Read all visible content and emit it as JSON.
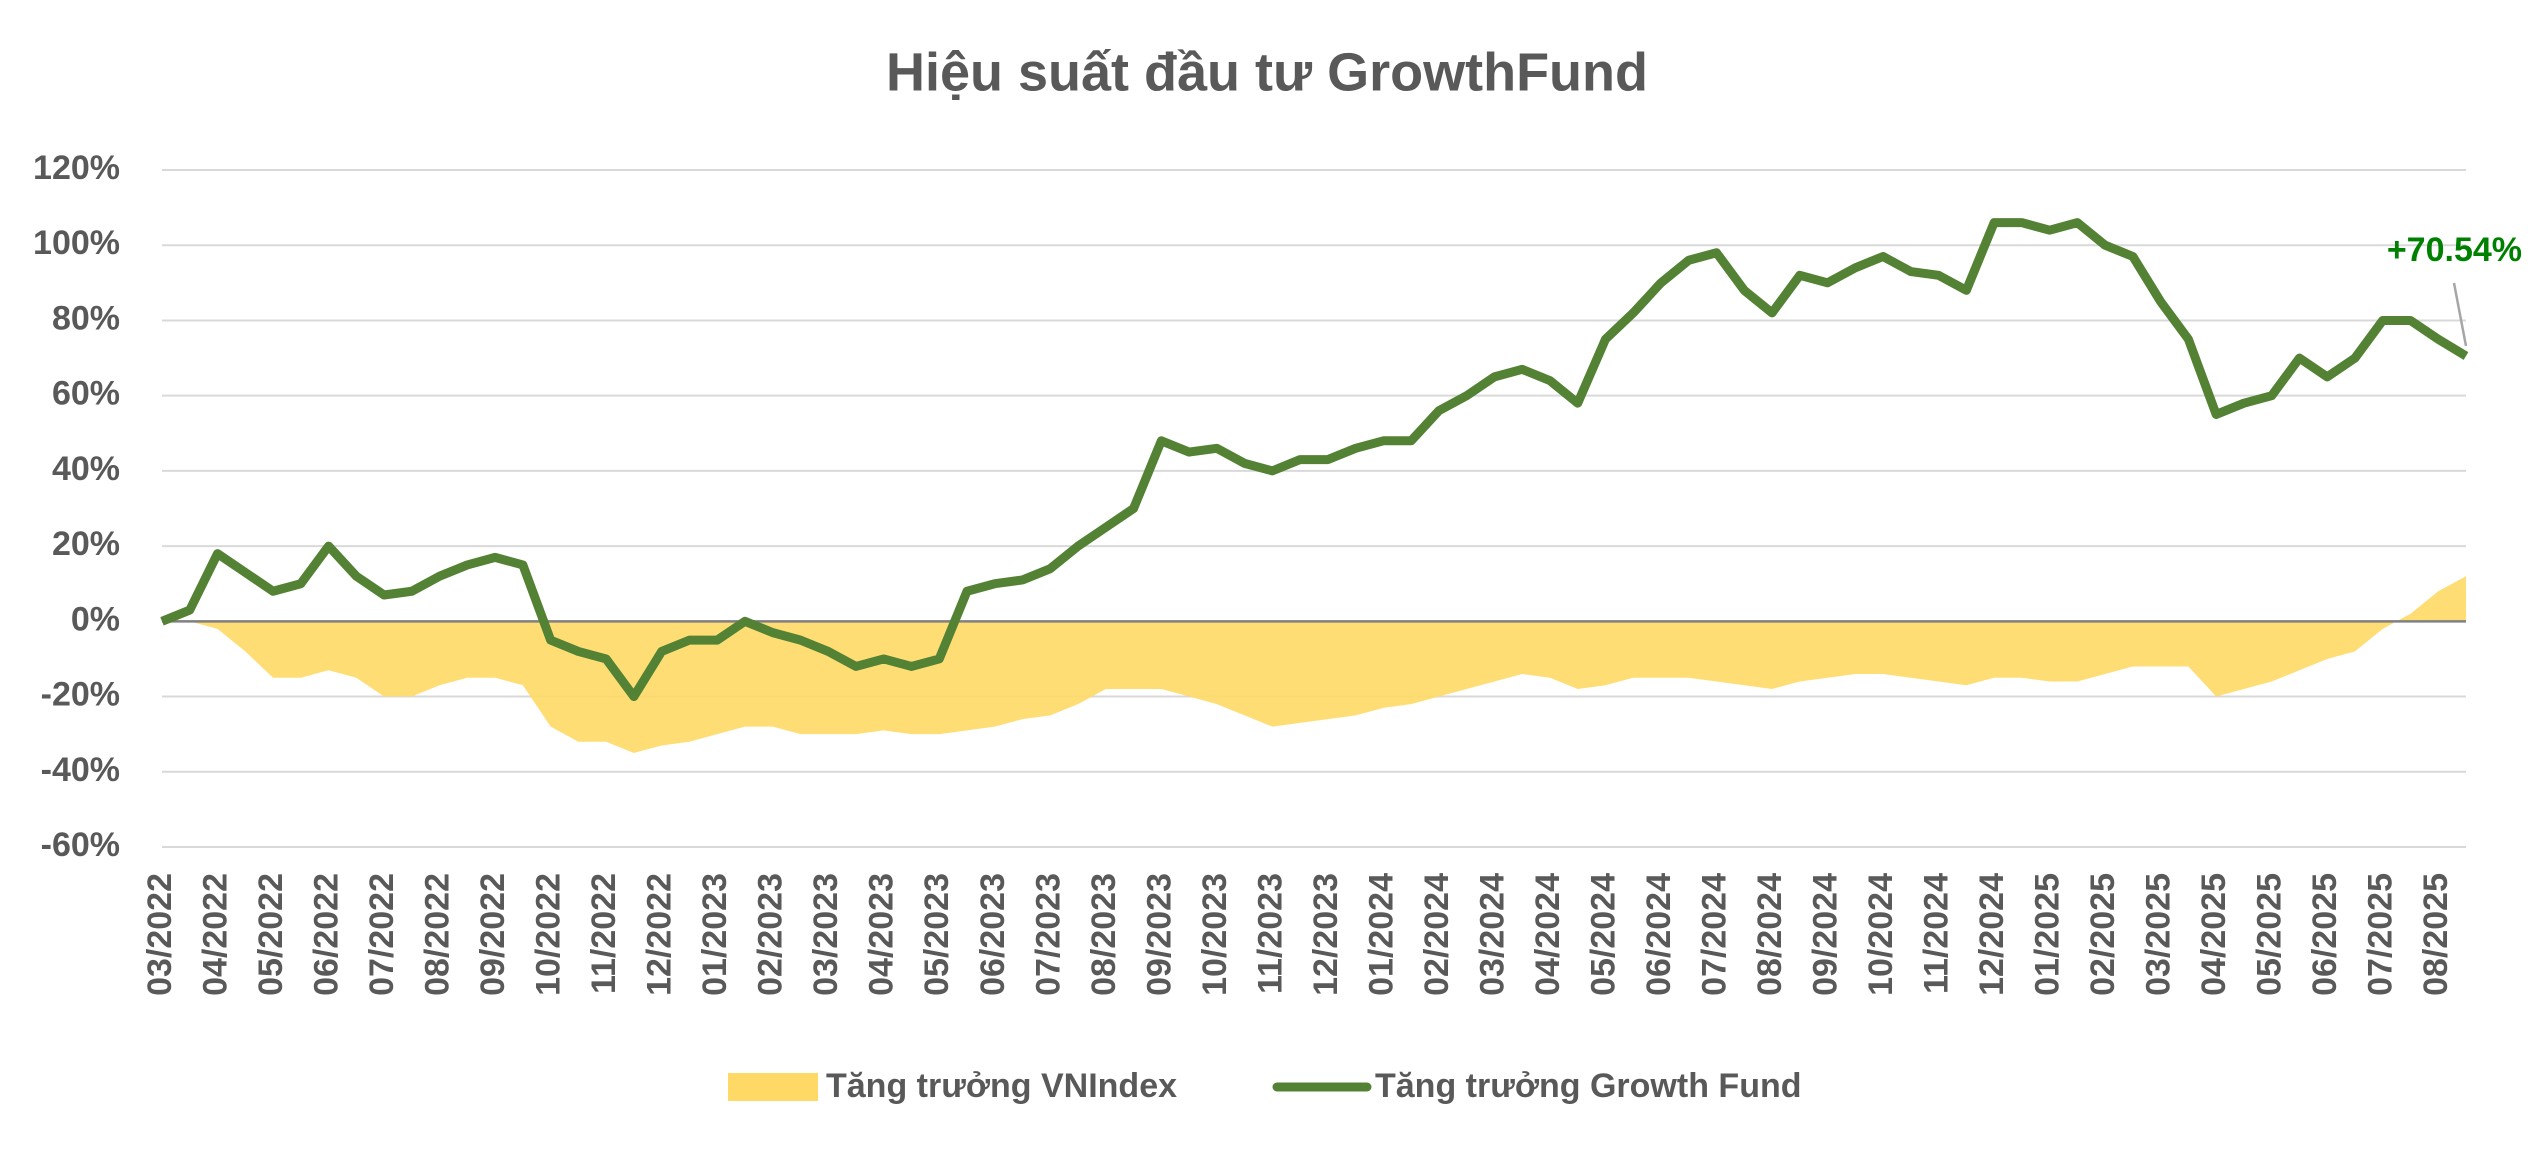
{
  "chart_data": {
    "type": "line",
    "title": "Hiệu suất đầu tư GrowthFund",
    "annotation": "+70.54%",
    "categories": [
      "03/2022",
      null,
      "04/2022",
      null,
      "05/2022",
      null,
      "06/2022",
      null,
      "07/2022",
      null,
      "08/2022",
      null,
      "09/2022",
      null,
      "10/2022",
      null,
      "11/2022",
      null,
      "12/2022",
      null,
      "01/2023",
      null,
      "02/2023",
      null,
      "03/2023",
      null,
      "04/2023",
      null,
      "05/2023",
      null,
      "06/2023",
      null,
      "07/2023",
      null,
      "08/2023",
      null,
      "09/2023",
      null,
      "10/2023",
      null,
      "11/2023",
      null,
      "12/2023",
      null,
      "01/2024",
      null,
      "02/2024",
      null,
      "03/2024",
      null,
      "04/2024",
      null,
      "05/2024",
      null,
      "06/2024",
      null,
      "07/2024",
      null,
      "08/2024",
      null,
      "09/2024",
      null,
      "10/2024",
      null,
      "11/2024",
      null,
      "12/2024",
      null,
      "01/2025",
      null,
      "02/2025",
      null,
      "03/2025",
      null,
      "04/2025",
      null,
      "05/2025",
      null,
      "06/2025",
      null,
      "07/2025",
      null,
      "08/2025",
      null
    ],
    "series": [
      {
        "name": "Tăng trưởng VNIndex",
        "color": "#FFD966",
        "area": true,
        "values": [
          0,
          0,
          -2,
          -8,
          -15,
          -15,
          -13,
          -15,
          -20,
          -20,
          -17,
          -15,
          -15,
          -17,
          -28,
          -32,
          -32,
          -35,
          -33,
          -32,
          -30,
          -28,
          -28,
          -30,
          -30,
          -30,
          -29,
          -30,
          -30,
          -29,
          -28,
          -26,
          -25,
          -22,
          -18,
          -18,
          -18,
          -20,
          -22,
          -25,
          -28,
          -27,
          -26,
          -25,
          -23,
          -22,
          -20,
          -18,
          -16,
          -14,
          -15,
          -18,
          -17,
          -15,
          -15,
          -15,
          -16,
          -17,
          -18,
          -16,
          -15,
          -14,
          -14,
          -15,
          -16,
          -17,
          -15,
          -15,
          -16,
          -16,
          -14,
          -12,
          -12,
          -12,
          -20,
          -18,
          -16,
          -13,
          -10,
          -8,
          -2,
          2,
          8,
          12
        ]
      },
      {
        "name": "Tăng trưởng Growth Fund",
        "color": "#548235",
        "area": false,
        "values": [
          0,
          3,
          18,
          13,
          8,
          10,
          20,
          12,
          7,
          8,
          12,
          15,
          17,
          15,
          -5,
          -8,
          -10,
          -20,
          -8,
          -5,
          -5,
          0,
          -3,
          -5,
          -8,
          -12,
          -10,
          -12,
          -10,
          8,
          10,
          11,
          14,
          20,
          25,
          30,
          48,
          45,
          46,
          42,
          40,
          43,
          43,
          46,
          48,
          48,
          56,
          60,
          65,
          67,
          64,
          58,
          75,
          82,
          90,
          96,
          98,
          88,
          82,
          92,
          90,
          94,
          97,
          93,
          92,
          88,
          106,
          106,
          104,
          106,
          100,
          97,
          85,
          75,
          55,
          58,
          60,
          70,
          65,
          70,
          80,
          80,
          75,
          70.54
        ]
      }
    ],
    "ylim": [
      -60,
      120
    ],
    "yticks": [
      {
        "value": -60,
        "label": "-60%"
      },
      {
        "value": -40,
        "label": "-40%"
      },
      {
        "value": -20,
        "label": "-20%"
      },
      {
        "value": 0,
        "label": "0%"
      },
      {
        "value": 20,
        "label": "20%"
      },
      {
        "value": 40,
        "label": "40%"
      },
      {
        "value": 60,
        "label": "60%"
      },
      {
        "value": 80,
        "label": "80%"
      },
      {
        "value": 100,
        "label": "100%"
      },
      {
        "value": 120,
        "label": "120%"
      }
    ],
    "grid": true,
    "legend": "bottom"
  }
}
